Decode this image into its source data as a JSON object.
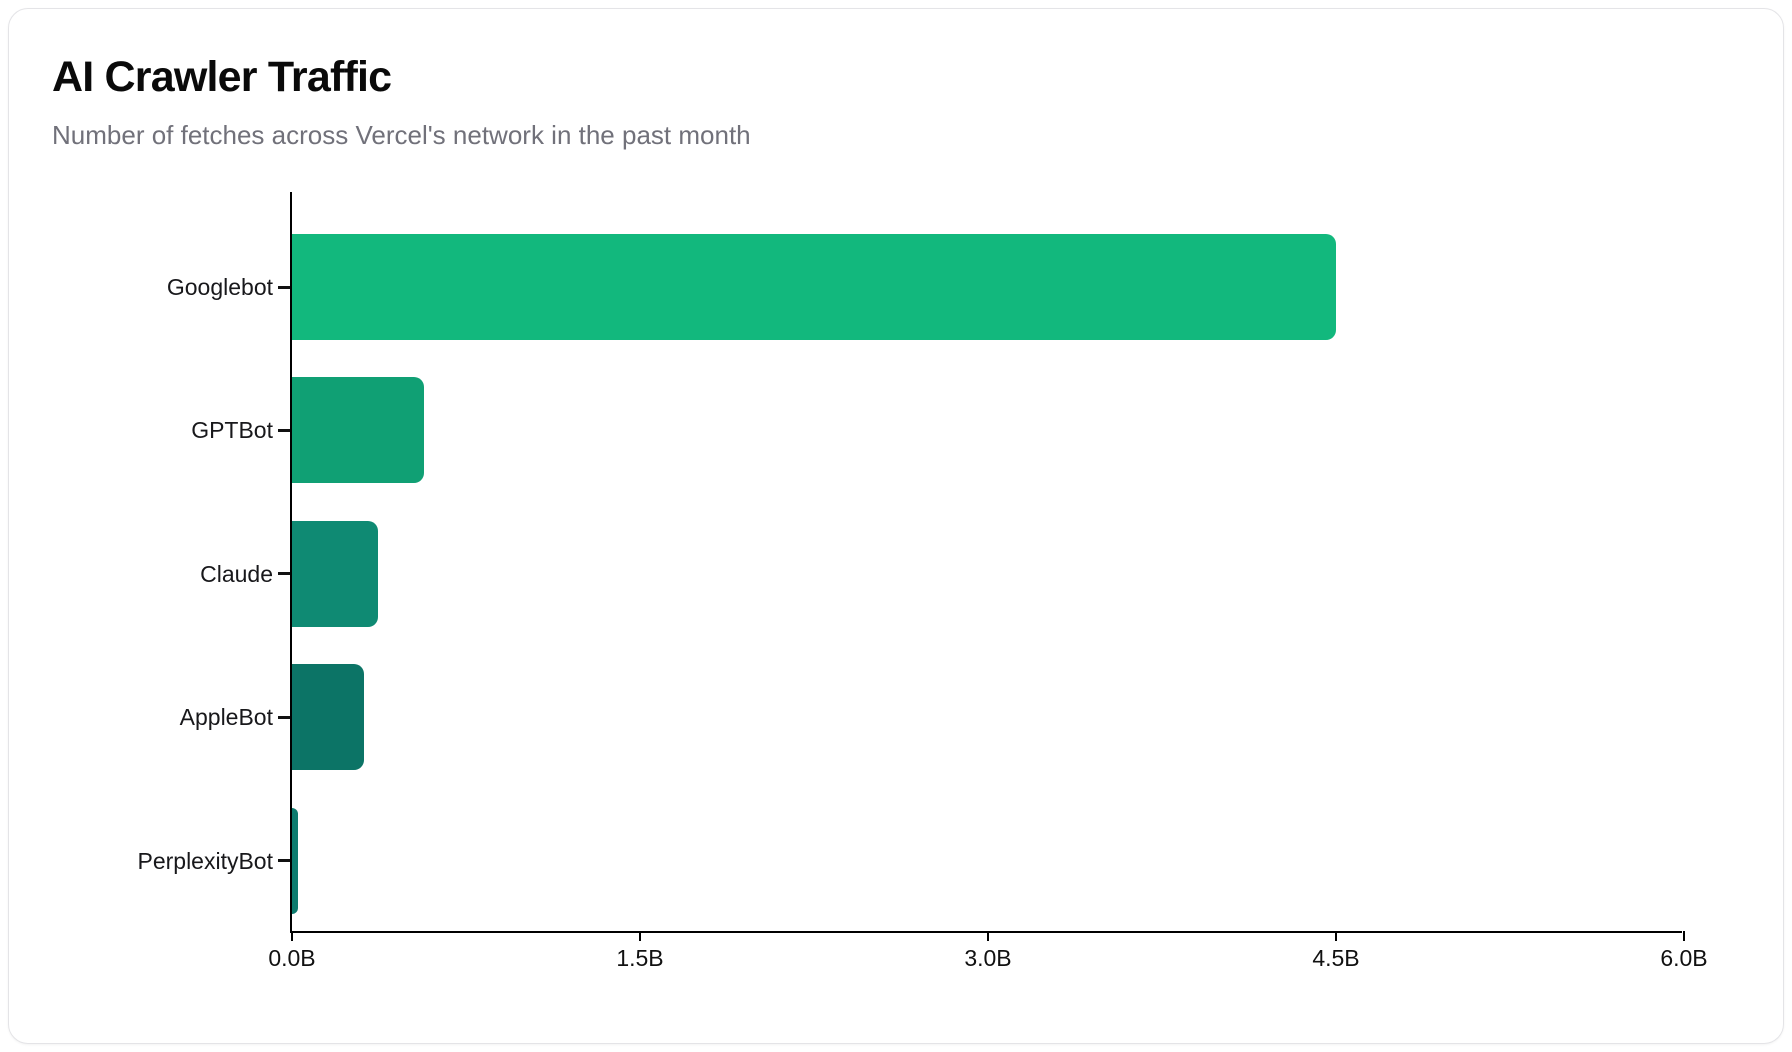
{
  "page": {
    "background_color": "#ffffff",
    "card_border_color": "#e4e4e7"
  },
  "header": {
    "title": "AI Crawler Traffic",
    "subtitle": "Number of fetches across Vercel's network in the past month"
  },
  "chart_data": {
    "type": "bar",
    "orientation": "horizontal",
    "title": "AI Crawler Traffic",
    "subtitle": "Number of fetches across Vercel's network in the past month",
    "categories": [
      "Googlebot",
      "GPTBot",
      "Claude",
      "AppleBot",
      "PerplexityBot"
    ],
    "values": [
      4.5,
      0.57,
      0.37,
      0.31,
      0.025
    ],
    "unit": "billions of fetches",
    "xlabel": "",
    "ylabel": "",
    "xlim": [
      0,
      6
    ],
    "x_ticks": [
      {
        "value": 0,
        "label": "0.0B"
      },
      {
        "value": 1.5,
        "label": "1.5B"
      },
      {
        "value": 3,
        "label": "3.0B"
      },
      {
        "value": 4.5,
        "label": "4.5B"
      },
      {
        "value": 6,
        "label": "6.0B"
      }
    ],
    "bar_colors": [
      "#12b87d",
      "#10a074",
      "#0f8a73",
      "#0c7466",
      "#0d7b6e"
    ],
    "patterned_bars": [
      "AppleBot",
      "PerplexityBot"
    ],
    "grid": false,
    "legend": false,
    "axis_color": "#000000",
    "label_color": "#18181b"
  }
}
